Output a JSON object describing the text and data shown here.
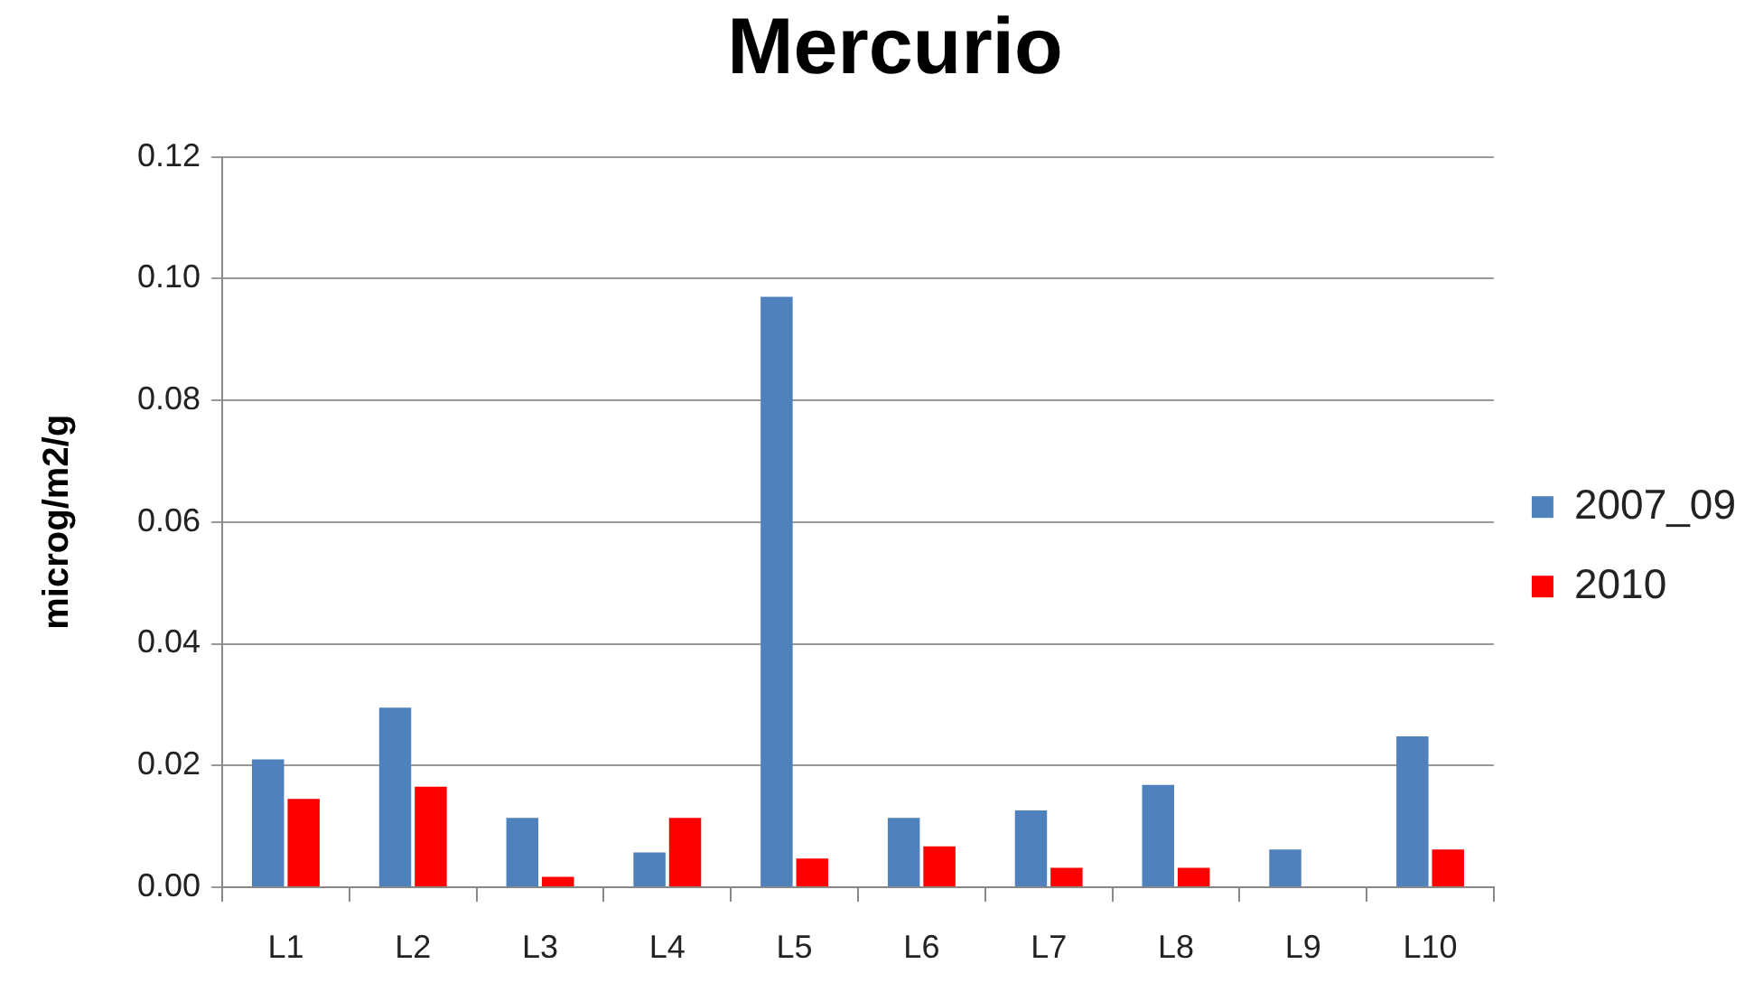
{
  "chart_data": {
    "type": "bar",
    "title": "Mercurio",
    "ylabel": "microg/m2/g",
    "categories": [
      "L1",
      "L2",
      "L3",
      "L4",
      "L5",
      "L6",
      "L7",
      "L8",
      "L9",
      "L10"
    ],
    "series": [
      {
        "name": "2007_09",
        "color": "#4f81bd",
        "values": [
          0.021,
          0.0295,
          0.0114,
          0.0057,
          0.097,
          0.0114,
          0.0126,
          0.0168,
          0.0062,
          0.0248
        ]
      },
      {
        "name": "2010",
        "color": "#ff0000",
        "values": [
          0.0145,
          0.0165,
          0.0017,
          0.0114,
          0.0047,
          0.0067,
          0.0032,
          0.0032,
          null,
          0.0062
        ]
      }
    ],
    "ylim": [
      0,
      0.12
    ],
    "yticks": [
      {
        "value": 0,
        "label": "0.00"
      },
      {
        "value": 0.02,
        "label": "0.02"
      },
      {
        "value": 0.04,
        "label": "0.04"
      },
      {
        "value": 0.06,
        "label": "0.06"
      },
      {
        "value": 0.08,
        "label": "0.08"
      },
      {
        "value": 0.1,
        "label": "0.10"
      },
      {
        "value": 0.12,
        "label": "0.12"
      }
    ],
    "grid": "y",
    "legend": "right"
  }
}
